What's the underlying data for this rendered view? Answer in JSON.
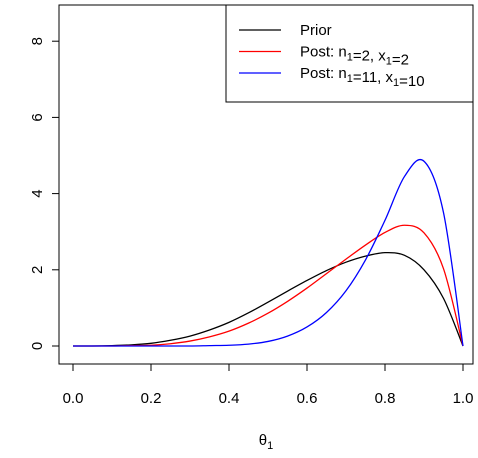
{
  "chart_data": {
    "type": "line",
    "xlabel": "θ",
    "xlabel_sub": "1",
    "ylabel": "",
    "xlim": [
      0,
      1
    ],
    "ylim": [
      0,
      9.5
    ],
    "xticks": [
      0.0,
      0.2,
      0.4,
      0.6,
      0.8,
      1.0
    ],
    "xtick_labels": [
      "0.0",
      "0.2",
      "0.4",
      "0.6",
      "0.8",
      "1.0"
    ],
    "yticks": [
      0,
      2,
      4,
      6,
      8
    ],
    "ytick_labels": [
      "0",
      "2",
      "4",
      "6",
      "8"
    ],
    "grid": false,
    "legend_position": "top-right",
    "x": [
      0.0,
      0.05,
      0.1,
      0.15,
      0.2,
      0.25,
      0.3,
      0.35,
      0.4,
      0.45,
      0.5,
      0.55,
      0.6,
      0.65,
      0.7,
      0.75,
      0.8,
      0.85,
      0.9,
      0.95,
      1.0
    ],
    "series": [
      {
        "legend_parts": [
          {
            "t": "Prior"
          }
        ],
        "color": "#000000",
        "values": [
          0.0,
          0.0,
          0.01,
          0.03,
          0.07,
          0.15,
          0.26,
          0.42,
          0.62,
          0.87,
          1.15,
          1.44,
          1.72,
          1.98,
          2.2,
          2.36,
          2.45,
          2.38,
          2.0,
          1.25,
          0.0
        ]
      },
      {
        "legend_parts": [
          {
            "t": "Post: n"
          },
          {
            "t": "1",
            "sub": true
          },
          {
            "t": "=2, x"
          },
          {
            "t": "1",
            "sub": true
          },
          {
            "t": "=2"
          }
        ],
        "color": "#ff0000",
        "values": [
          0.0,
          0.0,
          0.0,
          0.01,
          0.02,
          0.06,
          0.13,
          0.24,
          0.39,
          0.6,
          0.86,
          1.17,
          1.52,
          1.9,
          2.28,
          2.65,
          2.98,
          3.17,
          2.97,
          2.03,
          0.0
        ]
      },
      {
        "legend_parts": [
          {
            "t": "Post: n"
          },
          {
            "t": "1",
            "sub": true
          },
          {
            "t": "=11, x"
          },
          {
            "t": "1",
            "sub": true
          },
          {
            "t": "=10"
          }
        ],
        "color": "#0000ff",
        "values": [
          0.0,
          0.0,
          0.0,
          0.0,
          0.0,
          0.0,
          0.0,
          0.01,
          0.02,
          0.05,
          0.12,
          0.26,
          0.5,
          0.88,
          1.45,
          2.26,
          3.3,
          4.45,
          4.85,
          3.5,
          0.0
        ]
      }
    ]
  }
}
